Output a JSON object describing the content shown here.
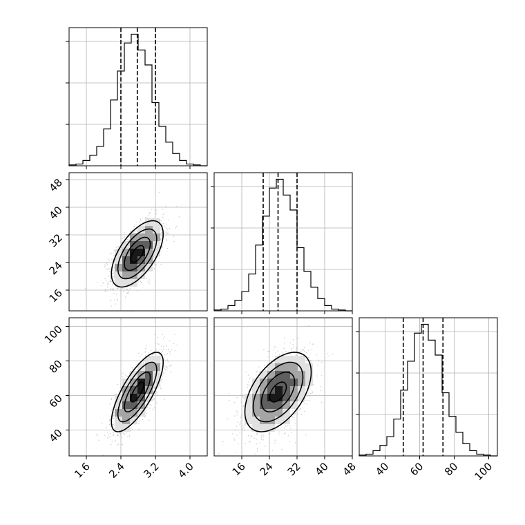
{
  "chart_data": [
    {
      "type": "histogram",
      "panel": "hist-param-1",
      "x_range": [
        1.2,
        4.4
      ],
      "bin_start": 1.2,
      "bin_width": 0.16,
      "counts": [
        1,
        2,
        6,
        12,
        22,
        42,
        75,
        108,
        140,
        150,
        132,
        115,
        72,
        45,
        27,
        14,
        6,
        2,
        1,
        0
      ],
      "quantiles": [
        2.4,
        2.78,
        3.2
      ],
      "grid": true
    },
    {
      "type": "histogram",
      "panel": "hist-param-2",
      "x_range": [
        8,
        48
      ],
      "bin_start": 8,
      "bin_width": 2,
      "counts": [
        1,
        2,
        6,
        12,
        22,
        42,
        75,
        108,
        140,
        150,
        132,
        115,
        72,
        45,
        27,
        14,
        6,
        2,
        1,
        0
      ],
      "quantiles": [
        22.2,
        26.5,
        32.0
      ],
      "grid": true
    },
    {
      "type": "histogram",
      "panel": "hist-param-3",
      "x_range": [
        25,
        105
      ],
      "bin_start": 25,
      "bin_width": 4,
      "counts": [
        1,
        2,
        6,
        12,
        22,
        42,
        75,
        108,
        140,
        150,
        132,
        115,
        72,
        45,
        27,
        14,
        6,
        2,
        1,
        0
      ],
      "quantiles": [
        50.5,
        62.0,
        73.5
      ],
      "grid": true
    },
    {
      "type": "2d-density",
      "panel": "density-param1-param2",
      "x_range": [
        1.2,
        4.4
      ],
      "y_range": [
        10,
        50
      ],
      "center": [
        2.78,
        26.5
      ],
      "sigma": [
        0.3,
        4.8
      ],
      "correlation": 0.6,
      "contour_levels": [
        0.5,
        1.0,
        1.5,
        2.0
      ],
      "grid": true
    },
    {
      "type": "2d-density",
      "panel": "density-param1-param3",
      "x_range": [
        1.2,
        4.4
      ],
      "y_range": [
        25,
        105
      ],
      "center": [
        2.78,
        62
      ],
      "sigma": [
        0.3,
        11.5
      ],
      "correlation": 0.75,
      "contour_levels": [
        0.5,
        1.0,
        1.5,
        2.0
      ],
      "grid": true
    },
    {
      "type": "2d-density",
      "panel": "density-param2-param3",
      "x_range": [
        8,
        48
      ],
      "y_range": [
        25,
        105
      ],
      "center": [
        26.5,
        62
      ],
      "sigma": [
        4.8,
        11.5
      ],
      "correlation": 0.5,
      "contour_levels": [
        0.5,
        1.0,
        1.5,
        2.0
      ],
      "grid": true
    }
  ],
  "axes": {
    "param1_ticks": [
      "1.6",
      "2.4",
      "3.2",
      "4.0"
    ],
    "param1_tick_values": [
      1.6,
      2.4,
      3.2,
      4.0
    ],
    "param2_ticks": [
      "16",
      "24",
      "32",
      "40",
      "48"
    ],
    "param2_tick_values": [
      16,
      24,
      32,
      40,
      48
    ],
    "param3_ticks": [
      "40",
      "60",
      "80",
      "100"
    ],
    "param3_tick_values": [
      40,
      60,
      80,
      100
    ],
    "colors": {
      "line": "#000000",
      "grid": "#b0b0b0",
      "points": "#a0a0a0"
    }
  }
}
